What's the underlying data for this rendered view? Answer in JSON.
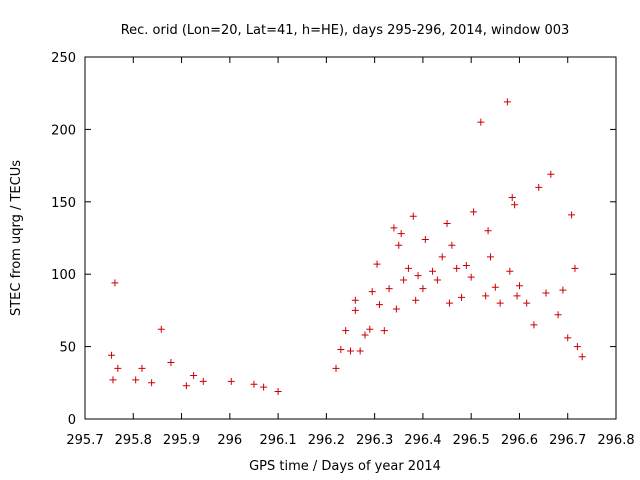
{
  "chart_data": {
    "type": "scatter",
    "title": "Rec. orid (Lon=20, Lat=41, h=HE), days 295-296, 2014, window 003",
    "xlabel": "GPS time / Days of year 2014",
    "ylabel": "STEC from uqrg / TECUs",
    "xlim": [
      295.7,
      296.8
    ],
    "ylim": [
      0,
      250
    ],
    "x_ticks": [
      "295.7",
      "295.8",
      "295.9",
      "296",
      "296.1",
      "296.2",
      "296.3",
      "296.4",
      "296.5",
      "296.6",
      "296.7",
      "296.8"
    ],
    "y_ticks": [
      "0",
      "50",
      "100",
      "150",
      "200",
      "250"
    ],
    "grid": false,
    "legend": "none",
    "marker": "+",
    "color": "#cc0000",
    "series": [
      {
        "points": [
          [
            295.755,
            44
          ],
          [
            295.758,
            27
          ],
          [
            295.762,
            94
          ],
          [
            295.768,
            35
          ],
          [
            295.805,
            27
          ],
          [
            295.818,
            35
          ],
          [
            295.838,
            25
          ],
          [
            295.858,
            62
          ],
          [
            295.878,
            39
          ],
          [
            295.91,
            23
          ],
          [
            295.925,
            30
          ],
          [
            295.945,
            26
          ],
          [
            296.003,
            26
          ],
          [
            296.05,
            24
          ],
          [
            296.07,
            22
          ],
          [
            296.1,
            19
          ],
          [
            296.22,
            35
          ],
          [
            296.23,
            48
          ],
          [
            296.24,
            61
          ],
          [
            296.25,
            47
          ],
          [
            296.26,
            82
          ],
          [
            296.26,
            75
          ],
          [
            296.27,
            47
          ],
          [
            296.28,
            58
          ],
          [
            296.29,
            62
          ],
          [
            296.295,
            88
          ],
          [
            296.305,
            107
          ],
          [
            296.31,
            79
          ],
          [
            296.32,
            61
          ],
          [
            296.33,
            90
          ],
          [
            296.34,
            132
          ],
          [
            296.345,
            76
          ],
          [
            296.35,
            120
          ],
          [
            296.355,
            128
          ],
          [
            296.36,
            96
          ],
          [
            296.37,
            104
          ],
          [
            296.38,
            140
          ],
          [
            296.385,
            82
          ],
          [
            296.39,
            99
          ],
          [
            296.4,
            90
          ],
          [
            296.405,
            124
          ],
          [
            296.42,
            102
          ],
          [
            296.43,
            96
          ],
          [
            296.44,
            112
          ],
          [
            296.45,
            135
          ],
          [
            296.455,
            80
          ],
          [
            296.46,
            120
          ],
          [
            296.47,
            104
          ],
          [
            296.48,
            84
          ],
          [
            296.49,
            106
          ],
          [
            296.5,
            98
          ],
          [
            296.505,
            143
          ],
          [
            296.52,
            205
          ],
          [
            296.53,
            85
          ],
          [
            296.535,
            130
          ],
          [
            296.54,
            112
          ],
          [
            296.55,
            91
          ],
          [
            296.56,
            80
          ],
          [
            296.575,
            219
          ],
          [
            296.58,
            102
          ],
          [
            296.585,
            153
          ],
          [
            296.59,
            148
          ],
          [
            296.595,
            85
          ],
          [
            296.6,
            92
          ],
          [
            296.615,
            80
          ],
          [
            296.63,
            65
          ],
          [
            296.64,
            160
          ],
          [
            296.655,
            87
          ],
          [
            296.665,
            169
          ],
          [
            296.68,
            72
          ],
          [
            296.69,
            89
          ],
          [
            296.7,
            56
          ],
          [
            296.708,
            141
          ],
          [
            296.715,
            104
          ],
          [
            296.72,
            50
          ],
          [
            296.73,
            43
          ]
        ]
      }
    ]
  }
}
